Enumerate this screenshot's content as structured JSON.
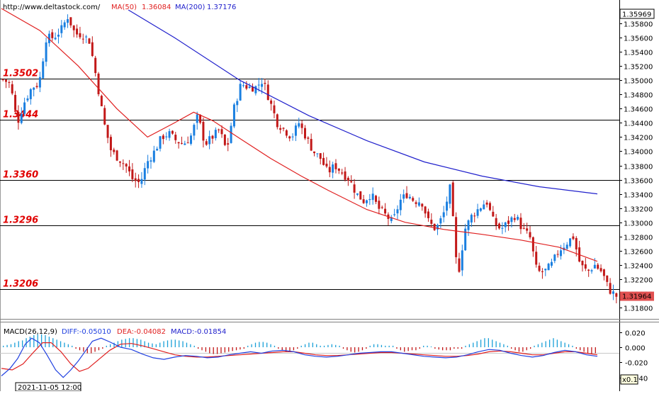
{
  "header": {
    "url": "http://www.deltastock.com/",
    "ma50_label": "MA(50)",
    "ma50_value": "1.36084",
    "ma200_label": "MA(200)",
    "ma200_value": "1.37176"
  },
  "macd_header": {
    "name": "MACD(26,12,9)",
    "diff": "DIFF:-0.05010",
    "dea": "DEA:-0.04082",
    "macd": "MACD:-0.01854"
  },
  "footer": {
    "date_label": "2021-11-05 12:00",
    "zoom_label": "x0.1"
  },
  "colors": {
    "up_candle": "#1a7fe0",
    "down_candle": "#c21818",
    "ma50": "#e02020",
    "ma200": "#2020cc",
    "level_line": "#000000",
    "level_text": "#e00000",
    "price_badge": "#e05050",
    "macd_hist_pos": "#1aa0d8",
    "macd_hist_neg": "#c21818",
    "diff_line": "#2040e0",
    "dea_line": "#e02020"
  },
  "chart_data": [
    {
      "type": "candlestick",
      "title": "",
      "ylim": [
        1.3165,
        1.3599
      ],
      "current_price": "1.35969",
      "last_price": "1.31964",
      "yticks": [
        "1.35800",
        "1.35600",
        "1.35400",
        "1.35200",
        "1.35000",
        "1.34800",
        "1.34600",
        "1.34400",
        "1.34200",
        "1.34000",
        "1.33800",
        "1.33600",
        "1.33400",
        "1.33200",
        "1.33000",
        "1.32800",
        "1.32600",
        "1.32400",
        "1.32200",
        "1.32000",
        "1.31800"
      ],
      "levels": [
        {
          "label": "1.3502",
          "value": 1.3502
        },
        {
          "label": "1.3444",
          "value": 1.3444
        },
        {
          "label": "1.3360",
          "value": 1.336
        },
        {
          "label": "1.3296",
          "value": 1.3296
        },
        {
          "label": "1.3206",
          "value": 1.3206
        }
      ],
      "close_path": [
        1.3501,
        1.3495,
        1.344,
        1.347,
        1.349,
        1.3495,
        1.356,
        1.356,
        1.357,
        1.359,
        1.3565,
        1.3565,
        1.3555,
        1.35,
        1.344,
        1.34,
        1.339,
        1.338,
        1.336,
        1.3355,
        1.3385,
        1.34,
        1.342,
        1.3425,
        1.3415,
        1.341,
        1.342,
        1.345,
        1.341,
        1.342,
        1.343,
        1.34,
        1.346,
        1.3495,
        1.349,
        1.349,
        1.35,
        1.347,
        1.344,
        1.343,
        1.342,
        1.344,
        1.342,
        1.34,
        1.339,
        1.337,
        1.338,
        1.337,
        1.336,
        1.334,
        1.333,
        1.334,
        1.332,
        1.331,
        1.33,
        1.333,
        1.334,
        1.333,
        1.333,
        1.33,
        1.329,
        1.331,
        1.335,
        1.322,
        1.329,
        1.331,
        1.332,
        1.333,
        1.33,
        1.329,
        1.33,
        1.331,
        1.329,
        1.328,
        1.323,
        1.323,
        1.324,
        1.326,
        1.327,
        1.328,
        1.324,
        1.323,
        1.324,
        1.323,
        1.3205,
        1.3196
      ],
      "ma50": [
        [
          0,
          1.3601
        ],
        [
          10,
          1.357
        ],
        [
          20,
          1.352
        ],
        [
          30,
          1.346
        ],
        [
          38,
          1.342
        ],
        [
          45,
          1.344
        ],
        [
          50,
          1.3455
        ],
        [
          55,
          1.3443
        ],
        [
          62,
          1.3418
        ],
        [
          70,
          1.339
        ],
        [
          78,
          1.3365
        ],
        [
          85,
          1.3345
        ],
        [
          95,
          1.3318
        ],
        [
          105,
          1.33
        ],
        [
          115,
          1.329
        ],
        [
          125,
          1.3283
        ],
        [
          135,
          1.3275
        ],
        [
          145,
          1.3265
        ],
        [
          155,
          1.3245
        ]
      ],
      "ma200": [
        [
          33,
          1.3599
        ],
        [
          45,
          1.356
        ],
        [
          62,
          1.35
        ],
        [
          80,
          1.345
        ],
        [
          95,
          1.3415
        ],
        [
          110,
          1.3385
        ],
        [
          125,
          1.3365
        ],
        [
          140,
          1.335
        ],
        [
          155,
          1.334
        ]
      ]
    },
    {
      "type": "bar",
      "title": "MACD(26,12,9)",
      "ylim": [
        -0.045,
        0.03
      ],
      "yticks": [
        "0.020",
        "0.000",
        "-0.020",
        "-0.040"
      ],
      "hist": [
        0.002,
        0.003,
        0.004,
        0.006,
        0.008,
        0.009,
        0.012,
        0.014,
        0.016,
        0.017,
        0.017,
        0.016,
        0.014,
        0.012,
        0.01,
        0.008,
        0.006,
        0.004,
        0.002,
        -0.002,
        -0.004,
        -0.006,
        -0.008,
        -0.008,
        -0.006,
        -0.004,
        -0.002,
        0.002,
        0.004,
        0.006,
        0.008,
        0.01,
        0.011,
        0.012,
        0.012,
        0.011,
        0.01,
        0.008,
        0.006,
        0.005,
        0.004,
        0.006,
        0.008,
        0.009,
        0.01,
        0.01,
        0.009,
        0.008,
        0.006,
        0.004,
        0.002,
        -0.002,
        -0.004,
        -0.006,
        -0.008,
        -0.009,
        -0.009,
        -0.008,
        -0.007,
        -0.006,
        -0.005,
        -0.004,
        -0.003,
        -0.002,
        0.002,
        0.004,
        0.006,
        0.007,
        0.007,
        0.006,
        0.004,
        0.002,
        -0.002,
        -0.004,
        -0.006,
        -0.006,
        -0.004,
        -0.002,
        0.002,
        0.004,
        0.006,
        0.006,
        0.004,
        0.002,
        0.002,
        0.003,
        0.004,
        0.003,
        0.002,
        -0.002,
        -0.004,
        -0.006,
        -0.007,
        -0.006,
        -0.004,
        -0.002,
        0.002,
        0.004,
        0.004,
        0.003,
        0.002,
        0.002,
        0.002,
        -0.002,
        -0.004,
        -0.006,
        -0.005,
        -0.004,
        -0.004,
        -0.002,
        0.002,
        0.002,
        0.001,
        -0.002,
        -0.003,
        -0.004,
        -0.004,
        -0.004,
        -0.002,
        -0.002,
        -0.002,
        0.002,
        0.004,
        0.006,
        0.008,
        0.01,
        0.012,
        0.012,
        0.01,
        0.008,
        0.006,
        0.004,
        0.002,
        -0.002,
        -0.004,
        -0.006,
        -0.006,
        -0.004,
        -0.002,
        0.002,
        0.004,
        0.006,
        0.008,
        0.01,
        0.012,
        0.01,
        0.008,
        0.006,
        0.004,
        0.002,
        -0.002,
        -0.004,
        -0.006,
        -0.008,
        -0.009,
        -0.008
      ],
      "diff": [
        [
          0,
          -0.038
        ],
        [
          8,
          -0.028
        ],
        [
          15,
          -0.015
        ],
        [
          22,
          0.004
        ],
        [
          28,
          0.012
        ],
        [
          35,
          0.006
        ],
        [
          42,
          -0.01
        ],
        [
          50,
          -0.03
        ],
        [
          57,
          -0.04
        ],
        [
          64,
          -0.03
        ],
        [
          71,
          -0.018
        ],
        [
          78,
          -0.004
        ],
        [
          84,
          0.008
        ],
        [
          92,
          0.012
        ],
        [
          100,
          0.007
        ],
        [
          110,
          0.0
        ],
        [
          120,
          -0.003
        ],
        [
          130,
          -0.009
        ],
        [
          140,
          -0.014
        ],
        [
          150,
          -0.016
        ],
        [
          160,
          -0.013
        ],
        [
          170,
          -0.011
        ],
        [
          180,
          -0.012
        ],
        [
          190,
          -0.014
        ],
        [
          200,
          -0.013
        ],
        [
          210,
          -0.01
        ],
        [
          220,
          -0.008
        ],
        [
          230,
          -0.006
        ],
        [
          240,
          -0.008
        ],
        [
          250,
          -0.005
        ],
        [
          260,
          -0.004
        ],
        [
          270,
          -0.006
        ],
        [
          280,
          -0.01
        ],
        [
          290,
          -0.012
        ],
        [
          300,
          -0.013
        ],
        [
          310,
          -0.012
        ],
        [
          320,
          -0.01
        ],
        [
          330,
          -0.008
        ],
        [
          340,
          -0.007
        ],
        [
          350,
          -0.006
        ],
        [
          360,
          -0.006
        ],
        [
          370,
          -0.008
        ],
        [
          380,
          -0.01
        ],
        [
          390,
          -0.012
        ],
        [
          400,
          -0.013
        ],
        [
          410,
          -0.014
        ],
        [
          420,
          -0.013
        ],
        [
          430,
          -0.01
        ],
        [
          440,
          -0.006
        ],
        [
          450,
          -0.003
        ],
        [
          460,
          -0.004
        ],
        [
          470,
          -0.008
        ],
        [
          480,
          -0.011
        ],
        [
          490,
          -0.013
        ],
        [
          500,
          -0.011
        ],
        [
          510,
          -0.007
        ],
        [
          520,
          -0.004
        ],
        [
          530,
          -0.006
        ],
        [
          540,
          -0.01
        ],
        [
          550,
          -0.012
        ]
      ],
      "dea": [
        [
          0,
          -0.028
        ],
        [
          10,
          -0.03
        ],
        [
          20,
          -0.022
        ],
        [
          30,
          -0.006
        ],
        [
          38,
          0.006
        ],
        [
          46,
          0.006
        ],
        [
          55,
          -0.006
        ],
        [
          64,
          -0.022
        ],
        [
          72,
          -0.032
        ],
        [
          80,
          -0.028
        ],
        [
          90,
          -0.016
        ],
        [
          100,
          -0.004
        ],
        [
          110,
          0.004
        ],
        [
          120,
          0.005
        ],
        [
          130,
          0.002
        ],
        [
          140,
          -0.002
        ],
        [
          150,
          -0.006
        ],
        [
          160,
          -0.01
        ],
        [
          170,
          -0.012
        ],
        [
          180,
          -0.013
        ],
        [
          190,
          -0.013
        ],
        [
          200,
          -0.012
        ],
        [
          210,
          -0.011
        ],
        [
          220,
          -0.01
        ],
        [
          230,
          -0.009
        ],
        [
          240,
          -0.008
        ],
        [
          250,
          -0.007
        ],
        [
          260,
          -0.006
        ],
        [
          270,
          -0.006
        ],
        [
          280,
          -0.008
        ],
        [
          290,
          -0.01
        ],
        [
          300,
          -0.011
        ],
        [
          310,
          -0.011
        ],
        [
          320,
          -0.01
        ],
        [
          330,
          -0.009
        ],
        [
          340,
          -0.008
        ],
        [
          350,
          -0.007
        ],
        [
          360,
          -0.007
        ],
        [
          370,
          -0.008
        ],
        [
          380,
          -0.009
        ],
        [
          390,
          -0.01
        ],
        [
          400,
          -0.011
        ],
        [
          410,
          -0.012
        ],
        [
          420,
          -0.012
        ],
        [
          430,
          -0.011
        ],
        [
          440,
          -0.009
        ],
        [
          450,
          -0.006
        ],
        [
          460,
          -0.005
        ],
        [
          470,
          -0.006
        ],
        [
          480,
          -0.008
        ],
        [
          490,
          -0.01
        ],
        [
          500,
          -0.01
        ],
        [
          510,
          -0.008
        ],
        [
          520,
          -0.006
        ],
        [
          530,
          -0.006
        ],
        [
          540,
          -0.008
        ],
        [
          550,
          -0.01
        ]
      ]
    }
  ]
}
